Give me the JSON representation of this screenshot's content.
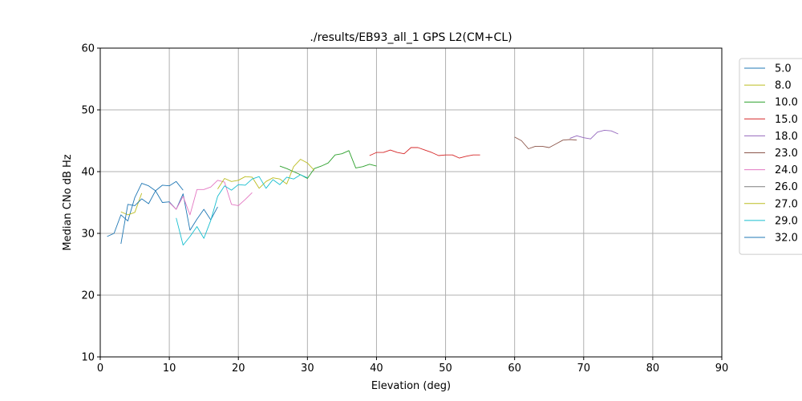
{
  "chart_data": {
    "type": "line",
    "title": "./results/EB93_all_1 GPS L2(CM+CL)",
    "xlabel": "Elevation (deg)",
    "ylabel": "Median CNo dB Hz",
    "xlim": [
      0,
      90
    ],
    "ylim": [
      10,
      60
    ],
    "xticks": [
      0,
      10,
      20,
      30,
      40,
      50,
      60,
      70,
      80,
      90
    ],
    "yticks": [
      10,
      20,
      30,
      40,
      50,
      60
    ],
    "grid": true,
    "legend_position": "right-outside",
    "series": [
      {
        "name": "5.0",
        "color": "#1f77b4",
        "x": [
          1,
          2,
          3,
          4,
          5,
          6,
          7,
          8,
          9,
          10,
          11,
          12,
          13,
          14,
          15,
          16,
          17
        ],
        "y": [
          29.5,
          30.0,
          33.0,
          32.0,
          35.8,
          38.1,
          37.7,
          36.9,
          35.0,
          35.1,
          33.9,
          36.4,
          30.5,
          32.3,
          33.9,
          32.2,
          34.3
        ]
      },
      {
        "name": "8.0",
        "color": "#bcbd22",
        "x": [
          3,
          4,
          5,
          6
        ],
        "y": [
          33.5,
          33.0,
          33.4,
          36.5
        ]
      },
      {
        "name": "10.0",
        "color": "#2ca02c",
        "x": [
          26,
          27,
          28,
          29,
          30,
          31,
          32,
          33,
          34,
          35,
          36,
          37,
          38,
          39,
          40
        ],
        "y": [
          40.9,
          40.5,
          40.0,
          39.5,
          38.9,
          40.5,
          40.9,
          41.4,
          42.7,
          42.9,
          43.4,
          40.6,
          40.8,
          41.2,
          40.9
        ]
      },
      {
        "name": "15.0",
        "color": "#d62728",
        "x": [
          39,
          40,
          41,
          42,
          43,
          44,
          45,
          46,
          47,
          48,
          49,
          50,
          51,
          52,
          53,
          54,
          55
        ],
        "y": [
          42.6,
          43.1,
          43.1,
          43.5,
          43.1,
          42.9,
          43.9,
          43.9,
          43.5,
          43.1,
          42.6,
          42.7,
          42.7,
          42.2,
          42.5,
          42.7,
          42.7
        ]
      },
      {
        "name": "18.0",
        "color": "#9467bd",
        "x": [
          68,
          69,
          70,
          71,
          72,
          73,
          74,
          75
        ],
        "y": [
          45.4,
          45.8,
          45.5,
          45.3,
          46.4,
          46.7,
          46.6,
          46.1
        ]
      },
      {
        "name": "23.0",
        "color": "#8c564b",
        "x": [
          60,
          61,
          62,
          63,
          64,
          65,
          66,
          67,
          68,
          69
        ],
        "y": [
          45.6,
          45.0,
          43.7,
          44.1,
          44.1,
          43.9,
          44.5,
          45.1,
          45.2,
          45.1
        ]
      },
      {
        "name": "24.0",
        "color": "#e377c2",
        "x": [
          10,
          11,
          12,
          13,
          14,
          15,
          16,
          17,
          18,
          19,
          20,
          21,
          22
        ],
        "y": [
          35.0,
          33.9,
          36.0,
          33.0,
          37.1,
          37.1,
          37.5,
          38.6,
          38.3,
          34.7,
          34.5,
          35.5,
          36.6
        ]
      },
      {
        "name": "26.0",
        "color": "#7f7f7f",
        "x": [],
        "y": []
      },
      {
        "name": "27.0",
        "color": "#bcbd22",
        "x": [
          17,
          18,
          19,
          20,
          21,
          22,
          23,
          24,
          25,
          26,
          27,
          28,
          29,
          30,
          31
        ],
        "y": [
          37.2,
          38.9,
          38.4,
          38.6,
          39.2,
          39.1,
          37.3,
          38.4,
          39.0,
          38.8,
          38.0,
          40.8,
          42.0,
          41.4,
          40.2
        ]
      },
      {
        "name": "29.0",
        "color": "#17becf",
        "x": [
          11,
          12,
          13,
          14,
          15,
          16,
          17,
          18,
          19,
          20,
          21,
          22,
          23,
          24,
          25,
          26,
          27,
          28,
          29,
          30
        ],
        "y": [
          32.5,
          28.1,
          29.5,
          31.1,
          29.2,
          32.1,
          36.0,
          37.7,
          37.0,
          37.9,
          37.8,
          38.8,
          39.2,
          37.3,
          38.7,
          37.9,
          39.1,
          38.8,
          39.5,
          39.0
        ]
      },
      {
        "name": "32.0",
        "color": "#1f77b4",
        "x": [
          3,
          4,
          5,
          6,
          7,
          8,
          9,
          10,
          11,
          12
        ],
        "y": [
          28.3,
          34.7,
          34.5,
          35.6,
          34.8,
          36.9,
          37.8,
          37.7,
          38.4,
          37.0
        ]
      }
    ]
  }
}
